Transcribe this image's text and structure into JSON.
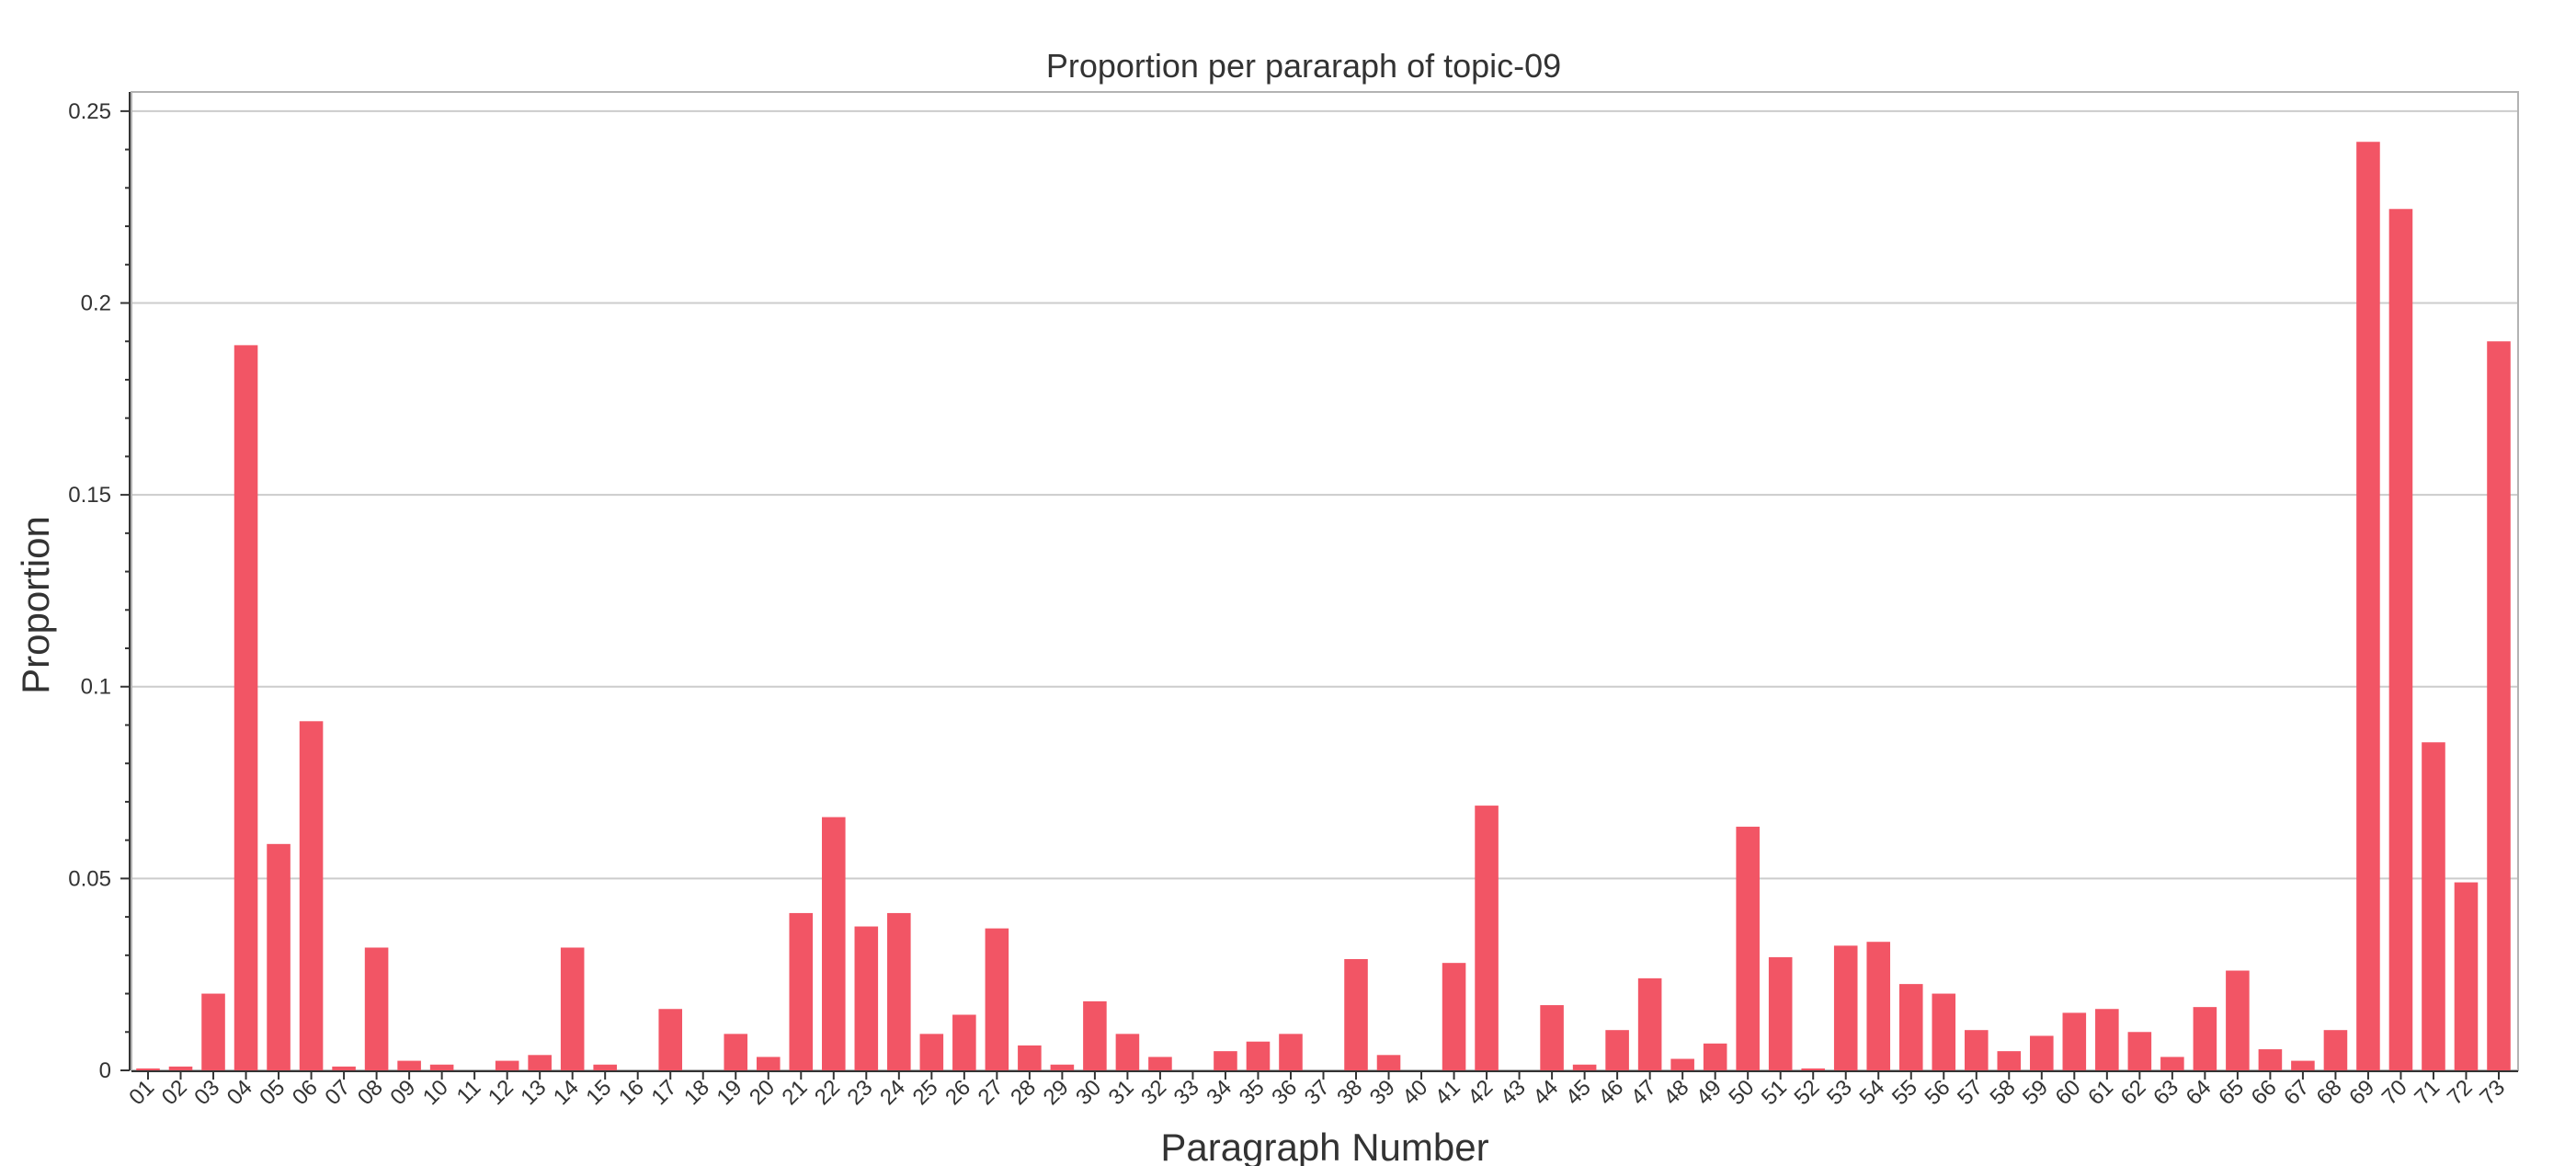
{
  "chart_data": {
    "type": "bar",
    "title": "Proportion per pararaph of topic-09",
    "xlabel": "Paragraph Number",
    "ylabel": "Proportion",
    "ylim": [
      0,
      0.255
    ],
    "yticks": [
      "0",
      "0.05",
      "0.1",
      "0.15",
      "0.2",
      "0.25"
    ],
    "ytick_values": [
      0,
      0.05,
      0.1,
      0.15,
      0.2,
      0.25
    ],
    "grid": true,
    "bar_color": "#f25565",
    "categories": [
      "01",
      "02",
      "03",
      "04",
      "05",
      "06",
      "07",
      "08",
      "09",
      "10",
      "11",
      "12",
      "13",
      "14",
      "15",
      "16",
      "17",
      "18",
      "19",
      "20",
      "21",
      "22",
      "23",
      "24",
      "25",
      "26",
      "27",
      "28",
      "29",
      "30",
      "31",
      "32",
      "33",
      "34",
      "35",
      "36",
      "37",
      "38",
      "39",
      "40",
      "41",
      "42",
      "43",
      "44",
      "45",
      "46",
      "47",
      "48",
      "49",
      "50",
      "51",
      "52",
      "53",
      "54",
      "55",
      "56",
      "57",
      "58",
      "59",
      "60",
      "61",
      "62",
      "63",
      "64",
      "65",
      "66",
      "67",
      "68",
      "69",
      "70",
      "71",
      "72",
      "73"
    ],
    "values": [
      0.0005,
      0.001,
      0.02,
      0.189,
      0.059,
      0.091,
      0.001,
      0.032,
      0.0025,
      0.0015,
      0.0,
      0.0025,
      0.004,
      0.032,
      0.0015,
      0.0,
      0.016,
      0.0,
      0.0095,
      0.0035,
      0.041,
      0.066,
      0.0375,
      0.041,
      0.0095,
      0.0145,
      0.037,
      0.0065,
      0.0015,
      0.018,
      0.0095,
      0.0035,
      0.0,
      0.005,
      0.0075,
      0.0095,
      0.0,
      0.029,
      0.004,
      0.0,
      0.028,
      0.069,
      0.0,
      0.017,
      0.0015,
      0.0105,
      0.024,
      0.003,
      0.007,
      0.0635,
      0.0295,
      0.0005,
      0.0325,
      0.0335,
      0.0225,
      0.02,
      0.0105,
      0.005,
      0.009,
      0.015,
      0.016,
      0.01,
      0.0035,
      0.0165,
      0.026,
      0.0055,
      0.0025,
      0.0105,
      0.242,
      0.2245,
      0.0855,
      0.049,
      0.19
    ]
  }
}
